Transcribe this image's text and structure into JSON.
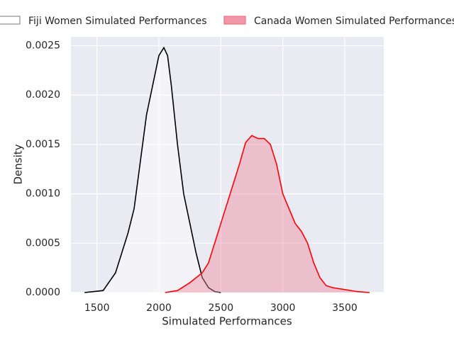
{
  "chart_data": {
    "type": "kde",
    "xlabel": "Simulated Performances",
    "ylabel": "Density",
    "xlim": [
      1290,
      3815
    ],
    "ylim": [
      0,
      0.00259
    ],
    "xticks": [
      1500,
      2000,
      2500,
      3000,
      3500
    ],
    "yticks": [
      {
        "value": 0,
        "label": "0.0000"
      },
      {
        "value": 0.0005,
        "label": "0.0005"
      },
      {
        "value": 0.001,
        "label": "0.0010"
      },
      {
        "value": 0.0015,
        "label": "0.0015"
      },
      {
        "value": 0.002,
        "label": "0.0020"
      },
      {
        "value": 0.0025,
        "label": "0.0025"
      }
    ],
    "grid": true,
    "legend": "top",
    "series": [
      {
        "name": "Fiji Women Simulated Performances",
        "color": "#000000",
        "fill": "#ffffff",
        "legend_edge": "#777777",
        "x": [
          1400,
          1550,
          1650,
          1750,
          1800,
          1900,
          1950,
          2000,
          2040,
          2070,
          2100,
          2150,
          2200,
          2250,
          2300,
          2350,
          2400,
          2450,
          2500
        ],
        "values": [
          0,
          2e-05,
          0.0002,
          0.0006,
          0.00085,
          0.0018,
          0.0021,
          0.0024,
          0.00248,
          0.0024,
          0.0021,
          0.0015,
          0.001,
          0.0007,
          0.0004,
          0.00015,
          5e-05,
          1e-05,
          0
        ]
      },
      {
        "name": "Canada Women Simulated Performances",
        "color": "#ff0000",
        "fill": "#f08ca0",
        "legend_edge": "#f06070",
        "x": [
          2050,
          2150,
          2250,
          2350,
          2400,
          2450,
          2500,
          2550,
          2600,
          2650,
          2700,
          2750,
          2800,
          2850,
          2900,
          2950,
          3000,
          3050,
          3100,
          3150,
          3200,
          3250,
          3300,
          3350,
          3400,
          3500,
          3600,
          3700
        ],
        "values": [
          0,
          2e-05,
          0.0001,
          0.0002,
          0.0003,
          0.0005,
          0.0007,
          0.0009,
          0.0011,
          0.0013,
          0.00152,
          0.00159,
          0.00156,
          0.00156,
          0.0015,
          0.0013,
          0.001,
          0.00085,
          0.0007,
          0.00062,
          0.0005,
          0.0003,
          0.00015,
          7e-05,
          5e-05,
          3e-05,
          1e-05,
          0
        ]
      }
    ]
  }
}
